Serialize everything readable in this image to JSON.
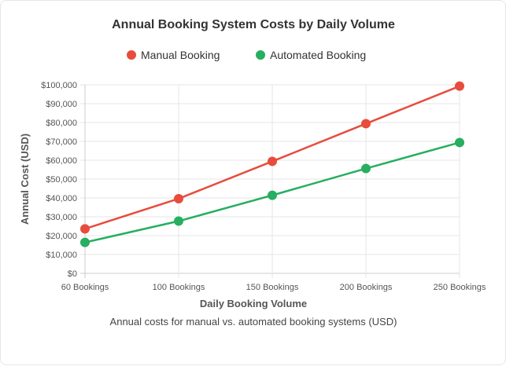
{
  "chart_data": {
    "type": "line",
    "title": "Annual Booking System Costs by Daily Volume",
    "subtitle": "Annual costs for manual vs. automated booking systems (USD)",
    "xlabel": "Daily Booking Volume",
    "ylabel": "Annual Cost (USD)",
    "categories": [
      "60 Bookings",
      "100 Bookings",
      "150 Bookings",
      "200 Bookings",
      "250 Bookings"
    ],
    "ylim": [
      0,
      100000
    ],
    "yticks": [
      "$0",
      "$10,000",
      "$20,000",
      "$30,000",
      "$40,000",
      "$50,000",
      "$60,000",
      "$70,000",
      "$80,000",
      "$90,000",
      "$100,000"
    ],
    "grid": true,
    "legend": "top",
    "series": [
      {
        "name": "Manual Booking",
        "color": "#e74c3c",
        "values": [
          23600,
          39600,
          59400,
          79400,
          99300
        ]
      },
      {
        "name": "Automated Booking",
        "color": "#27ae60",
        "values": [
          16400,
          27700,
          41400,
          55600,
          69400
        ]
      }
    ]
  }
}
